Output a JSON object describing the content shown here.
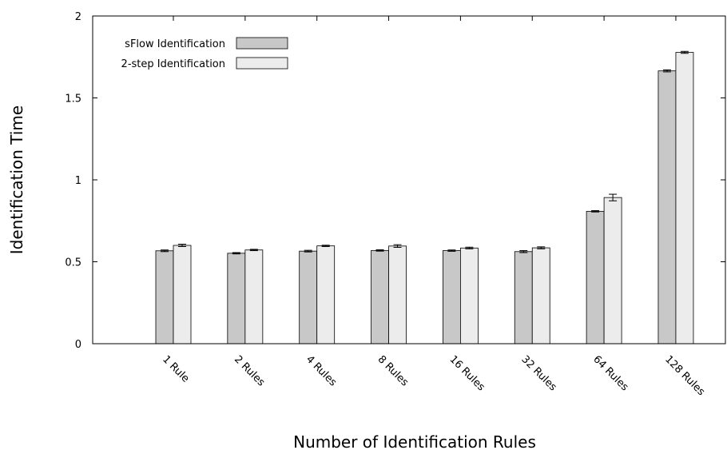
{
  "chart_data": {
    "type": "bar",
    "title": "",
    "xlabel": "Number of Identification Rules",
    "ylabel": "Identification Time",
    "ylim": [
      0,
      2
    ],
    "yticks": [
      "0",
      "0.5",
      "1",
      "1.5",
      "2"
    ],
    "grid": false,
    "legend_position": "top-left",
    "categories": [
      "1 Rule",
      "2 Rules",
      "4 Rules",
      "8 Rules",
      "16 Rules",
      "32 Rules",
      "64 Rules",
      "128 Rules"
    ],
    "series": [
      {
        "name": "sFlow Identification",
        "color": "#c8c8c8",
        "values": [
          0.567,
          0.552,
          0.565,
          0.569,
          0.568,
          0.562,
          0.808,
          1.665
        ],
        "errors": [
          0.005,
          0.004,
          0.005,
          0.004,
          0.004,
          0.006,
          0.004,
          0.006
        ]
      },
      {
        "name": "2-step Identification",
        "color": "#ececec",
        "values": [
          0.6,
          0.572,
          0.597,
          0.596,
          0.584,
          0.585,
          0.892,
          1.778
        ],
        "errors": [
          0.007,
          0.004,
          0.004,
          0.008,
          0.005,
          0.006,
          0.02,
          0.006
        ]
      }
    ]
  }
}
